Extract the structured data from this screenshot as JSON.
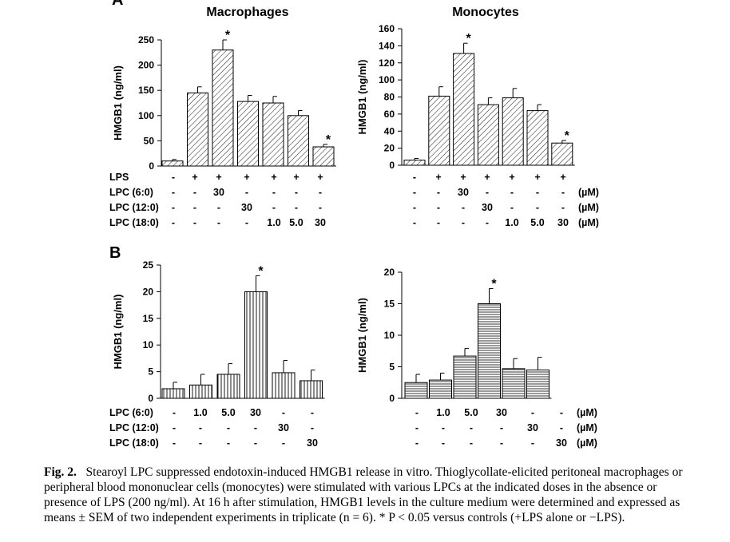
{
  "figure": {
    "panel_labels": [
      "A",
      "B"
    ],
    "star_symbol": "*"
  },
  "caption": {
    "label": "Fig. 2.",
    "text": "Stearoyl LPC suppressed endotoxin-induced HMGB1 release in vitro. Thioglycollate-elicited peritoneal macrophages or peripheral blood mononuclear cells (monocytes) were stimulated with various LPCs at the indicated doses in the absence or presence of LPS (200 ng/ml). At 16 h after stimulation, HMGB1 levels in the culture medium were determined and expressed as means ± SEM of two independent experiments in triplicate (n = 6). * P < 0.05 versus controls (+LPS alone or −LPS)."
  },
  "chart_data": [
    {
      "type": "bar",
      "panel": "A",
      "title": "Macrophages",
      "ylabel": "HMGB1 (ng/ml)",
      "ylim": [
        0,
        250
      ],
      "yticks": [
        0,
        50,
        100,
        150,
        200,
        250
      ],
      "values": [
        10,
        145,
        230,
        128,
        125,
        100,
        38
      ],
      "errors": [
        3,
        12,
        20,
        12,
        13,
        10,
        5
      ],
      "significant": [
        false,
        false,
        true,
        false,
        false,
        false,
        true
      ],
      "pattern": "diag",
      "condition_rows": [
        {
          "label": "LPS",
          "values": [
            "-",
            "+",
            "+",
            "+",
            "+",
            "+",
            "+"
          ]
        },
        {
          "label": "LPC (6:0)",
          "values": [
            "-",
            "-",
            "30",
            "-",
            "-",
            "-",
            "-"
          ]
        },
        {
          "label": "LPC (12:0)",
          "values": [
            "-",
            "-",
            "-",
            "30",
            "-",
            "-",
            "-"
          ]
        },
        {
          "label": "LPC (18:0)",
          "values": [
            "-",
            "-",
            "-",
            "-",
            "1.0",
            "5.0",
            "30"
          ]
        }
      ]
    },
    {
      "type": "bar",
      "panel": "A",
      "title": "Monocytes",
      "ylabel": "HMGB1 (ng/ml)",
      "ylim": [
        0,
        160
      ],
      "yticks": [
        0,
        20,
        40,
        60,
        80,
        100,
        120,
        140,
        160
      ],
      "values": [
        6,
        81,
        131,
        71,
        79,
        64,
        26
      ],
      "errors": [
        2,
        11,
        12,
        8,
        11,
        7,
        3
      ],
      "significant": [
        false,
        false,
        true,
        false,
        false,
        false,
        true
      ],
      "pattern": "diag",
      "condition_rows": [
        {
          "label": "",
          "values": [
            "-",
            "+",
            "+",
            "+",
            "+",
            "+",
            "+"
          ],
          "unit": ""
        },
        {
          "label": "",
          "values": [
            "-",
            "-",
            "30",
            "-",
            "-",
            "-",
            "-"
          ],
          "unit": "(µM)"
        },
        {
          "label": "",
          "values": [
            "-",
            "-",
            "-",
            "30",
            "-",
            "-",
            "-"
          ],
          "unit": "(µM)"
        },
        {
          "label": "",
          "values": [
            "-",
            "-",
            "-",
            "-",
            "1.0",
            "5.0",
            "30"
          ],
          "unit": "(µM)"
        }
      ]
    },
    {
      "type": "bar",
      "panel": "B",
      "title": "",
      "ylabel": "HMGB1 (ng/ml)",
      "ylim": [
        0,
        25
      ],
      "yticks": [
        0,
        5,
        10,
        15,
        20,
        25
      ],
      "values": [
        1.8,
        2.5,
        4.5,
        20,
        4.8,
        3.3
      ],
      "errors": [
        1.2,
        2.0,
        2.0,
        3.0,
        2.3,
        2.0
      ],
      "significant": [
        false,
        false,
        false,
        true,
        false,
        false
      ],
      "pattern": "vert",
      "condition_rows": [
        {
          "label": "LPC (6:0)",
          "values": [
            "-",
            "1.0",
            "5.0",
            "30",
            "-",
            "-"
          ]
        },
        {
          "label": "LPC (12:0)",
          "values": [
            "-",
            "-",
            "-",
            "-",
            "30",
            "-"
          ]
        },
        {
          "label": "LPC (18:0)",
          "values": [
            "-",
            "-",
            "-",
            "-",
            "-",
            "30"
          ]
        }
      ]
    },
    {
      "type": "bar",
      "panel": "B",
      "title": "",
      "ylabel": "HMGB1 (ng/ml)",
      "ylim": [
        0,
        20
      ],
      "yticks": [
        0,
        5,
        10,
        15,
        20
      ],
      "values": [
        2.5,
        2.9,
        6.7,
        15,
        4.7,
        4.5
      ],
      "errors": [
        1.3,
        1.1,
        1.2,
        2.4,
        1.6,
        2.0
      ],
      "significant": [
        false,
        false,
        false,
        true,
        false,
        false
      ],
      "pattern": "horiz",
      "condition_rows": [
        {
          "label": "",
          "values": [
            "-",
            "1.0",
            "5.0",
            "30",
            "-",
            "-"
          ],
          "unit": "(µM)"
        },
        {
          "label": "",
          "values": [
            "-",
            "-",
            "-",
            "-",
            "30",
            "-"
          ],
          "unit": "(µM)"
        },
        {
          "label": "",
          "values": [
            "-",
            "-",
            "-",
            "-",
            "-",
            "30"
          ],
          "unit": "(µM)"
        }
      ]
    }
  ]
}
